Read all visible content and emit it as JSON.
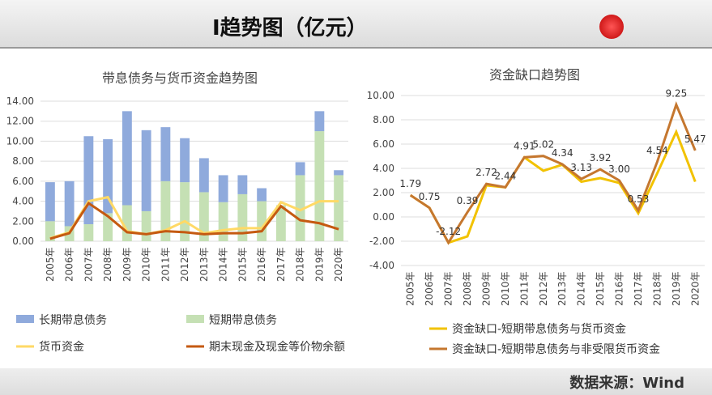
{
  "header": {
    "title": "I趋势图（亿元）"
  },
  "footer": {
    "source": "数据来源：Wind"
  },
  "colors": {
    "long": "#8faadc",
    "short": "#c5e0b4",
    "cash": "#ffd966",
    "cash_eq": "#c55a11",
    "gap1": "#f2c200",
    "gap2": "#c5772f"
  },
  "chart_data": [
    {
      "type": "bar",
      "title": "带息债务与货币资金趋势图",
      "stacked": true,
      "categories": [
        "2005年",
        "2006年",
        "2007年",
        "2008年",
        "2009年",
        "2010年",
        "2011年",
        "2012年",
        "2013年",
        "2014年",
        "2015年",
        "2016年",
        "2017年",
        "2018年",
        "2019年",
        "2020年"
      ],
      "ylim": [
        0,
        14
      ],
      "yticks": [
        "0.00",
        "2.00",
        "4.00",
        "6.00",
        "8.00",
        "10.00",
        "12.00",
        "14.00"
      ],
      "grid": true,
      "legend": "bottom",
      "series": [
        {
          "name": "长期带息债务",
          "type": "bar",
          "values": [
            3.9,
            4.5,
            8.8,
            7.4,
            9.4,
            8.1,
            5.4,
            4.4,
            3.4,
            2.7,
            1.9,
            1.3,
            0,
            1.3,
            2.0,
            0.5
          ]
        },
        {
          "name": "短期带息债务",
          "type": "bar",
          "values": [
            2.0,
            1.5,
            1.7,
            2.8,
            3.6,
            3.0,
            6.0,
            5.9,
            4.9,
            3.9,
            4.7,
            4.0,
            3.6,
            6.6,
            11.0,
            6.6
          ]
        },
        {
          "name": "货币资金",
          "type": "line",
          "values": [
            0.3,
            0.9,
            4.0,
            4.4,
            1.0,
            0.7,
            1.1,
            2.0,
            0.8,
            1.1,
            1.3,
            1.3,
            3.9,
            3.1,
            4.0,
            4.0
          ]
        },
        {
          "name": "期末现金及现金等价物余额",
          "type": "line",
          "values": [
            0.25,
            0.8,
            3.8,
            2.5,
            0.9,
            0.7,
            1.0,
            0.9,
            0.7,
            0.8,
            0.8,
            1.0,
            3.5,
            2.1,
            1.8,
            1.2
          ]
        }
      ]
    },
    {
      "type": "line",
      "title": "资金缺口趋势图",
      "categories": [
        "2005年",
        "2006年",
        "2007年",
        "2008年",
        "2009年",
        "2010年",
        "2011年",
        "2012年",
        "2013年",
        "2014年",
        "2015年",
        "2016年",
        "2017年",
        "2018年",
        "2019年",
        "2020年"
      ],
      "ylim": [
        -4,
        10
      ],
      "yticks": [
        "-4.00",
        "-2.00",
        "0.00",
        "2.00",
        "4.00",
        "6.00",
        "8.00",
        "10.00"
      ],
      "grid": true,
      "legend": "bottom",
      "series": [
        {
          "name": "资金缺口-短期带息债务与货币资金",
          "values": [
            1.79,
            0.75,
            -2.12,
            -1.6,
            2.6,
            2.44,
            4.91,
            3.8,
            4.3,
            2.9,
            3.2,
            2.8,
            0.3,
            3.6,
            7.0,
            2.9
          ]
        },
        {
          "name": "资金缺口-短期带息债务与非受限货币资金",
          "values": [
            1.79,
            0.75,
            -2.12,
            0.39,
            2.72,
            2.44,
            4.91,
            5.02,
            4.34,
            3.13,
            3.92,
            3.0,
            0.53,
            4.54,
            9.25,
            5.47
          ],
          "labels": [
            "1.79",
            "0.75",
            "-2.12",
            "0.39",
            "2.72",
            "2.44",
            "4.91",
            "5.02",
            "4.34",
            "3.13",
            "3.92",
            "3.00",
            "0.53",
            "4.54",
            "9.25",
            "5.47"
          ]
        }
      ]
    }
  ]
}
